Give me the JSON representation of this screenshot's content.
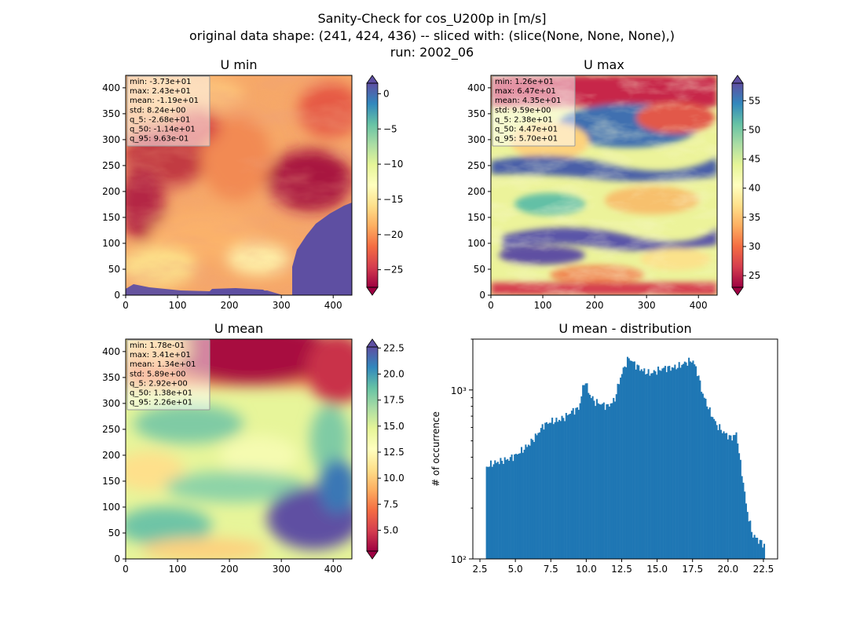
{
  "suptitle": {
    "line1": "Sanity-Check for cos_U200p in [m/s]",
    "line2": "original data shape: (241, 424, 436) -- sliced with: (slice(None, None, None),)",
    "line3": "run: 2002_06"
  },
  "colors": {
    "hist_bar": "#1f77b4",
    "spectral_low": "#9e0142",
    "spectral_mid": "#ffffbf",
    "spectral_high": "#5e4fa2"
  },
  "chart_data": [
    {
      "type": "heatmap",
      "title": "U min",
      "colormap": "Spectral",
      "x_ticks": [
        0,
        100,
        200,
        300,
        400
      ],
      "y_ticks": [
        0,
        50,
        100,
        150,
        200,
        250,
        300,
        350,
        400
      ],
      "xlim": [
        0,
        436
      ],
      "ylim": [
        0,
        424
      ],
      "colorbar": {
        "ticks": [
          0,
          -5,
          -10,
          -15,
          -20,
          -25
        ],
        "tick_labels": [
          "0",
          "−5",
          "−10",
          "−15",
          "−20",
          "−25"
        ],
        "range": [
          -27.5,
          1.5
        ],
        "extend": "both"
      },
      "stats": [
        "min: -3.73e+01",
        "max: 2.43e+01",
        "mean: -1.19e+01",
        "std: 8.24e+00",
        "q_5: -2.68e+01",
        "q_50: -1.14e+01",
        "q_95: 9.63e-01"
      ]
    },
    {
      "type": "heatmap",
      "title": "U max",
      "colormap": "Spectral",
      "x_ticks": [
        0,
        100,
        200,
        300,
        400
      ],
      "y_ticks": [
        0,
        50,
        100,
        150,
        200,
        250,
        300,
        350,
        400
      ],
      "xlim": [
        0,
        436
      ],
      "ylim": [
        0,
        424
      ],
      "colorbar": {
        "ticks": [
          55,
          50,
          45,
          40,
          35,
          30,
          25
        ],
        "tick_labels": [
          "55",
          "50",
          "45",
          "40",
          "35",
          "30",
          "25"
        ],
        "range": [
          23,
          58
        ],
        "extend": "both"
      },
      "stats": [
        "min: 1.26e+01",
        "max: 6.47e+01",
        "mean: 4.35e+01",
        "std: 9.59e+00",
        "q_5: 2.38e+01",
        "q_50: 4.47e+01",
        "q_95: 5.70e+01"
      ]
    },
    {
      "type": "heatmap",
      "title": "U mean",
      "colormap": "Spectral",
      "x_ticks": [
        0,
        100,
        200,
        300,
        400
      ],
      "y_ticks": [
        0,
        50,
        100,
        150,
        200,
        250,
        300,
        350,
        400
      ],
      "xlim": [
        0,
        436
      ],
      "ylim": [
        0,
        424
      ],
      "colorbar": {
        "ticks": [
          22.5,
          20.0,
          17.5,
          15.0,
          12.5,
          10.0,
          7.5,
          5.0
        ],
        "tick_labels": [
          "22.5",
          "20.0",
          "17.5",
          "15.0",
          "12.5",
          "10.0",
          "7.5",
          "5.0"
        ],
        "range": [
          3,
          22.6
        ],
        "extend": "both"
      },
      "stats": [
        "min: 1.78e-01",
        "max: 3.41e+01",
        "mean: 1.34e+01",
        "std: 5.89e+00",
        "q_5: 2.92e+00",
        "q_50: 1.38e+01",
        "q_95: 2.26e+01"
      ]
    },
    {
      "type": "bar",
      "title": "U mean - distribution",
      "ylabel": "# of occurrence",
      "xlim": [
        2.0,
        23.5
      ],
      "ylim": [
        100,
        2000
      ],
      "yscale": "log",
      "x_ticks": [
        2.5,
        5.0,
        7.5,
        10.0,
        12.5,
        15.0,
        17.5,
        20.0,
        22.5
      ],
      "x_tick_labels": [
        "2.5",
        "5.0",
        "7.5",
        "10.0",
        "12.5",
        "15.0",
        "17.5",
        "20.0",
        "22.5"
      ],
      "y_ticks": [
        100,
        1000
      ],
      "y_tick_labels": [
        "10²",
        "10³"
      ],
      "bins_range": [
        2.92,
        22.6
      ],
      "histogram_profile": [
        [
          2.92,
          350
        ],
        [
          3.5,
          370
        ],
        [
          4.0,
          380
        ],
        [
          4.5,
          390
        ],
        [
          5.0,
          410
        ],
        [
          5.5,
          440
        ],
        [
          6.0,
          480
        ],
        [
          6.5,
          540
        ],
        [
          7.0,
          620
        ],
        [
          7.5,
          650
        ],
        [
          8.0,
          660
        ],
        [
          8.5,
          690
        ],
        [
          9.0,
          750
        ],
        [
          9.5,
          780
        ],
        [
          9.9,
          1150
        ],
        [
          10.2,
          950
        ],
        [
          10.6,
          850
        ],
        [
          11.0,
          830
        ],
        [
          11.5,
          800
        ],
        [
          12.0,
          870
        ],
        [
          12.5,
          1250
        ],
        [
          13.0,
          1550
        ],
        [
          13.5,
          1400
        ],
        [
          14.0,
          1300
        ],
        [
          14.5,
          1250
        ],
        [
          15.0,
          1300
        ],
        [
          15.5,
          1350
        ],
        [
          16.0,
          1350
        ],
        [
          16.5,
          1380
        ],
        [
          17.0,
          1450
        ],
        [
          17.5,
          1500
        ],
        [
          17.8,
          1300
        ],
        [
          18.2,
          950
        ],
        [
          18.7,
          750
        ],
        [
          19.2,
          620
        ],
        [
          19.7,
          560
        ],
        [
          20.2,
          520
        ],
        [
          20.6,
          550
        ],
        [
          20.9,
          350
        ],
        [
          21.3,
          200
        ],
        [
          21.7,
          140
        ],
        [
          22.1,
          130
        ],
        [
          22.6,
          120
        ]
      ]
    }
  ]
}
